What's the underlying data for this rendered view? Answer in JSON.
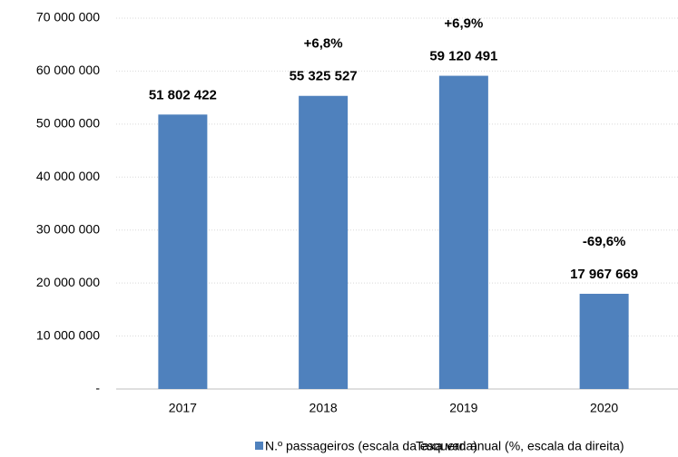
{
  "chart_data": {
    "type": "bar",
    "categories": [
      "2017",
      "2018",
      "2019",
      "2020"
    ],
    "series": [
      {
        "name": "N.º passageiros (escala da esquerda)",
        "color": "#4f81bd",
        "values": [
          51802422,
          55325527,
          59120491,
          17967669
        ],
        "value_labels": [
          "51 802 422",
          "55 325 527",
          "59 120 491",
          "17 967 669"
        ]
      },
      {
        "name": "Taxa var. anual (%, escala da direita)",
        "axis": "y2",
        "values": [
          null,
          6.8,
          6.9,
          -69.6
        ],
        "value_labels": [
          null,
          "+6,8%",
          "+6,9%",
          "-69,6%"
        ]
      }
    ],
    "ylim": [
      0,
      70000000
    ],
    "yticks": [
      {
        "value": 0,
        "label": "-"
      },
      {
        "value": 10000000,
        "label": "10 000 000"
      },
      {
        "value": 20000000,
        "label": "20 000 000"
      },
      {
        "value": 30000000,
        "label": "30 000 000"
      },
      {
        "value": 40000000,
        "label": "40 000 000"
      },
      {
        "value": 50000000,
        "label": "50 000 000"
      },
      {
        "value": 60000000,
        "label": "60 000 000"
      },
      {
        "value": 70000000,
        "label": "70 000 000"
      }
    ],
    "grid": true
  }
}
